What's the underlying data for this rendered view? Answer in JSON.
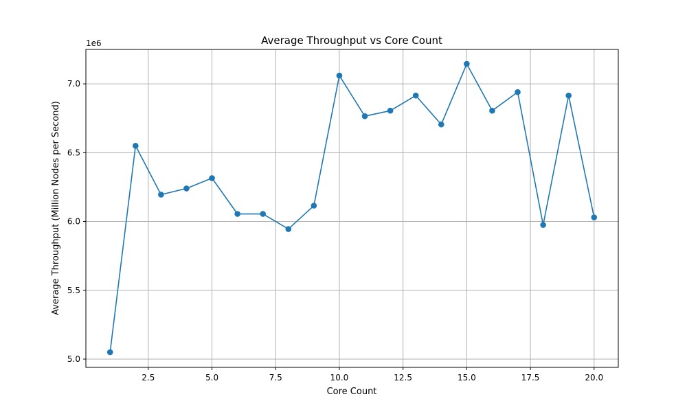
{
  "chart_data": {
    "type": "line",
    "title": "Average Throughput vs Core Count",
    "xlabel": "Core Count",
    "ylabel": "Average Throughput (Million Nodes per Second)",
    "y_offset_label": "1e6",
    "xlim": [
      0.05,
      20.95
    ],
    "ylim": [
      4.94,
      7.25
    ],
    "x_ticks": [
      2.5,
      5.0,
      7.5,
      10.0,
      12.5,
      15.0,
      17.5,
      20.0
    ],
    "x_tick_labels": [
      "2.5",
      "5.0",
      "7.5",
      "10.0",
      "12.5",
      "15.0",
      "17.5",
      "20.0"
    ],
    "y_ticks": [
      5.0,
      5.5,
      6.0,
      6.5,
      7.0
    ],
    "y_tick_labels": [
      "5.0",
      "5.5",
      "6.0",
      "6.5",
      "7.0"
    ],
    "grid": true,
    "series": [
      {
        "color": "#1f77b4",
        "marker": "circle",
        "x": [
          1,
          2,
          3,
          4,
          5,
          6,
          7,
          8,
          9,
          10,
          11,
          12,
          13,
          14,
          15,
          16,
          17,
          18,
          19,
          20
        ],
        "values": [
          5.05,
          6.55,
          6.195,
          6.24,
          6.315,
          6.055,
          6.055,
          5.945,
          6.115,
          7.06,
          6.765,
          6.805,
          6.915,
          6.705,
          7.145,
          6.805,
          6.94,
          5.975,
          6.915,
          6.03
        ]
      }
    ]
  }
}
